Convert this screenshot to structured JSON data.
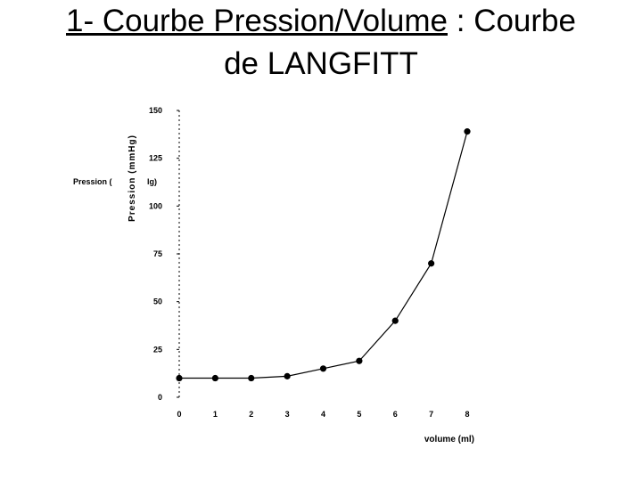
{
  "slide": {
    "title_part1": "1- Courbe Pression/Volume",
    "title_part2": " : ",
    "title_part3": "Courbe",
    "title_line2": "de LANGFITT"
  },
  "chart_data": {
    "type": "line",
    "title": "",
    "xlabel": "volume (ml)",
    "ylabel": "Pression (mmHg)",
    "ghost_label_left": "Pression (",
    "ghost_label_right": "lg)",
    "xlim": [
      0,
      8
    ],
    "ylim": [
      0,
      150
    ],
    "x_ticks": [
      0,
      1,
      2,
      3,
      4,
      5,
      6,
      7,
      8
    ],
    "y_ticks": [
      0,
      25,
      50,
      75,
      100,
      125,
      150
    ],
    "x": [
      0,
      1,
      2,
      3,
      4,
      5,
      6,
      7,
      8
    ],
    "y": [
      10,
      10,
      10,
      11,
      15,
      19,
      40,
      70,
      139
    ],
    "grid": false,
    "legend": "none"
  }
}
